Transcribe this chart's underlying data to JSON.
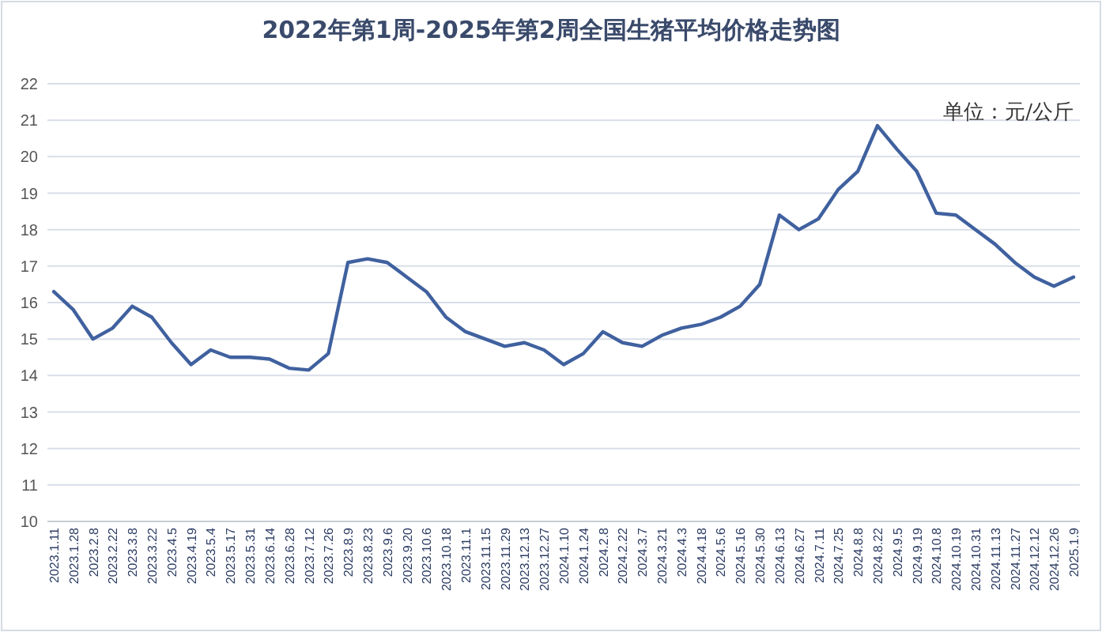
{
  "chart_data": {
    "type": "line",
    "title": "2022年第1周-2025年第2周全国生猪平均价格走势图",
    "annotations": [
      "单位：元/公斤"
    ],
    "categories": [
      "2023.1.11",
      "2023.1.28",
      "2023.2.8",
      "2023.2.22",
      "2023.3.8",
      "2023.3.22",
      "2023.4.5",
      "2023.4.19",
      "2023.5.4",
      "2023.5.17",
      "2023.5.31",
      "2023.6.14",
      "2023.6.28",
      "2023.7.12",
      "2023.7.26",
      "2023.8.9",
      "2023.8.23",
      "2023.9.6",
      "2023.9.20",
      "2023.10.6",
      "2023.10.18",
      "2023.11.1",
      "2023.11.15",
      "2023.11.29",
      "2023.12.13",
      "2023.12.27",
      "2024.1.10",
      "2024.1.24",
      "2024.2.8",
      "2024.2.22",
      "2024.3.7",
      "2024.3.21",
      "2024.4.3",
      "2024.4.18",
      "2024.5.6",
      "2024.5.16",
      "2024.5.30",
      "2024.6.13",
      "2024.6.27",
      "2024.7.11",
      "2024.7.25",
      "2024.8.8",
      "2024.8.22",
      "2024.9.5",
      "2024.9.19",
      "2024.10.8",
      "2024.10.19",
      "2024.10.31",
      "2024.11.13",
      "2024.11.27",
      "2024.12.12",
      "2024.12.26",
      "2025.1.9"
    ],
    "series": [
      {
        "color": "#40619f",
        "values": [
          16.3,
          15.8,
          15.0,
          15.3,
          15.9,
          15.6,
          14.9,
          14.3,
          14.7,
          14.5,
          14.5,
          14.45,
          14.2,
          14.15,
          14.6,
          17.1,
          17.2,
          17.1,
          16.7,
          16.3,
          15.6,
          15.2,
          15.0,
          14.8,
          14.9,
          14.7,
          14.3,
          14.6,
          15.2,
          14.9,
          14.8,
          15.1,
          15.3,
          15.4,
          15.6,
          15.9,
          16.5,
          18.4,
          18.0,
          18.3,
          19.1,
          19.6,
          20.85,
          20.2,
          19.6,
          18.45,
          18.4,
          18.0,
          17.6,
          17.1,
          16.7,
          16.45,
          16.7
        ]
      }
    ],
    "ylim": [
      10,
      22
    ],
    "yticks": [
      10,
      11,
      12,
      13,
      14,
      15,
      16,
      17,
      18,
      19,
      20,
      21,
      22
    ],
    "grid": "y",
    "marker": "none",
    "line_style": "solid"
  }
}
